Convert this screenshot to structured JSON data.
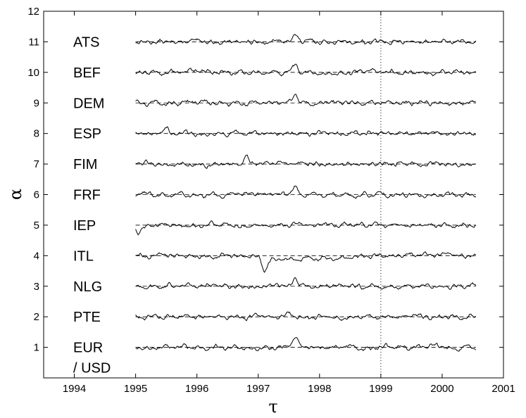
{
  "chart_data": {
    "type": "line",
    "xlabel": "τ",
    "ylabel": "α",
    "xlim": [
      1993.5,
      2001
    ],
    "ylim": [
      0,
      12
    ],
    "x_ticks": [
      "1994",
      "1995",
      "1996",
      "1997",
      "1998",
      "1999",
      "2000",
      "2001"
    ],
    "y_ticks": [
      "1",
      "2",
      "3",
      "4",
      "5",
      "6",
      "7",
      "8",
      "9",
      "10",
      "11",
      "12"
    ],
    "grid": false,
    "reference_vertical_line": {
      "x": 1999,
      "style": "dotted"
    },
    "x_range_of_series": [
      1995,
      2000.55
    ],
    "series": [
      {
        "name": "ATS",
        "baseline": 11,
        "notable_deviations": [
          {
            "x": 1997.6,
            "value": 11.25
          }
        ]
      },
      {
        "name": "BEF",
        "baseline": 10,
        "notable_deviations": [
          {
            "x": 1997.6,
            "value": 10.25
          }
        ]
      },
      {
        "name": "DEM",
        "baseline": 9,
        "notable_deviations": [
          {
            "x": 1997.6,
            "value": 9.25
          }
        ]
      },
      {
        "name": "ESP",
        "baseline": 8,
        "notable_deviations": [
          {
            "x": 1995.5,
            "value": 8.2
          }
        ]
      },
      {
        "name": "FIM",
        "baseline": 7,
        "notable_deviations": [
          {
            "x": 1996.8,
            "value": 7.25
          }
        ]
      },
      {
        "name": "FRF",
        "baseline": 6,
        "notable_deviations": [
          {
            "x": 1997.6,
            "value": 6.25
          }
        ]
      },
      {
        "name": "IEP",
        "baseline": 5,
        "notable_deviations": [
          {
            "x": 1995.05,
            "value": 4.75
          }
        ]
      },
      {
        "name": "ITL",
        "baseline": 4,
        "notable_deviations": [
          {
            "x": 1997.1,
            "value": 3.55
          }
        ]
      },
      {
        "name": "NLG",
        "baseline": 3,
        "notable_deviations": [
          {
            "x": 1997.6,
            "value": 3.25
          }
        ]
      },
      {
        "name": "PTE",
        "baseline": 2,
        "notable_deviations": [
          {
            "x": 1997.5,
            "value": 2.2
          }
        ]
      },
      {
        "name": "EUR\n/ USD",
        "baseline": 1,
        "notable_deviations": [
          {
            "x": 1997.6,
            "value": 1.25
          }
        ]
      }
    ]
  }
}
